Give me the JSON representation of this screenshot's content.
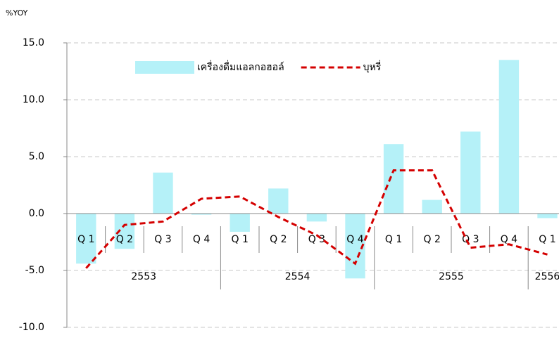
{
  "chart_data": {
    "type": "bar-line",
    "y_label": "%YOY",
    "categories": [
      "Q 1",
      "Q 2",
      "Q 3",
      "Q 4",
      "Q 1",
      "Q 2",
      "Q 3",
      "Q 4",
      "Q 1",
      "Q 2",
      "Q 3",
      "Q 4",
      "Q 1"
    ],
    "groups": [
      {
        "label": "2553",
        "count": 4
      },
      {
        "label": "2554",
        "count": 4
      },
      {
        "label": "2555",
        "count": 4
      },
      {
        "label": "2556",
        "count": 1
      }
    ],
    "series": [
      {
        "name": "เครื่องดื่มแอลกอฮอล์",
        "type": "bar",
        "color": "#b5f1f8",
        "values": [
          -4.4,
          -3.1,
          3.6,
          -0.1,
          -1.6,
          2.2,
          -0.7,
          -5.7,
          6.1,
          1.2,
          7.2,
          13.5,
          -0.4
        ]
      },
      {
        "name": "บุหรี่",
        "type": "line",
        "color": "#d40000",
        "values": [
          -4.8,
          -1.0,
          -0.7,
          1.3,
          1.5,
          -0.3,
          -1.9,
          -4.4,
          3.8,
          3.8,
          -3.0,
          -2.7,
          -3.6
        ]
      }
    ],
    "ylim": [
      -10,
      15
    ],
    "yticks": [
      {
        "value": -10,
        "label": "-10.0"
      },
      {
        "value": -5,
        "label": "-5.0"
      },
      {
        "value": 0,
        "label": "0.0"
      },
      {
        "value": 5,
        "label": "5.0"
      },
      {
        "value": 10,
        "label": "10.0"
      },
      {
        "value": 15,
        "label": "15.0"
      }
    ],
    "grid": true,
    "legend": "top"
  }
}
